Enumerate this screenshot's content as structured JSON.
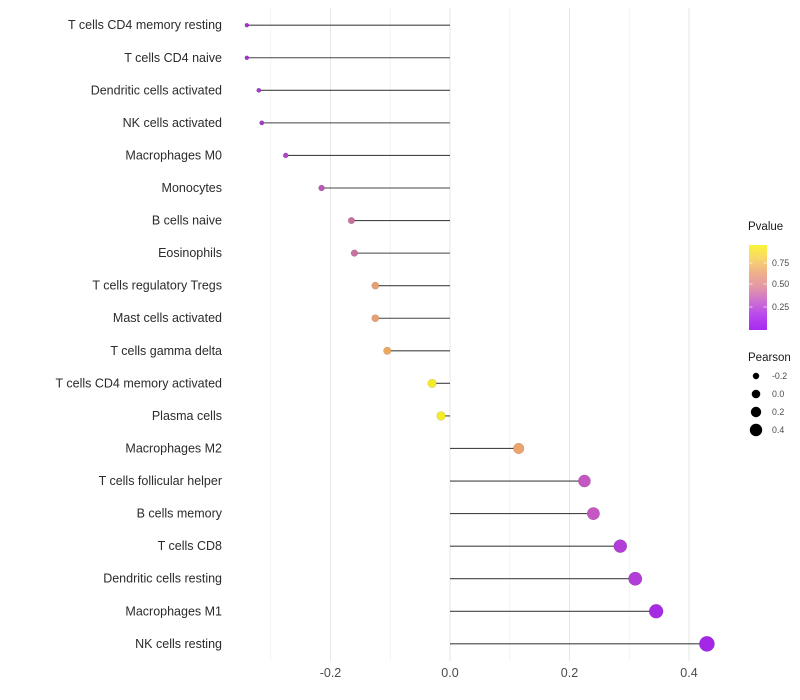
{
  "chart_data": {
    "type": "lollipop",
    "title": "",
    "xlabel": "",
    "ylabel": "",
    "x_tick_labels": [
      "-0.2",
      "0.0",
      "0.2",
      "0.4"
    ],
    "x_tick_values": [
      -0.2,
      0.0,
      0.2,
      0.4
    ],
    "x_minor_gridlines": [
      -0.3,
      -0.1,
      0.1,
      0.3
    ],
    "xlim": [
      -0.38,
      0.47
    ],
    "grid": "vertical-only",
    "size_encodes": "Pearson",
    "color_encodes": "Pvalue",
    "rows": [
      {
        "label": "T cells CD4 memory resting",
        "pearson": -0.34,
        "color": "#A233C9"
      },
      {
        "label": "T cells CD4 naive",
        "pearson": -0.34,
        "color": "#A233C9"
      },
      {
        "label": "Dendritic cells activated",
        "pearson": -0.32,
        "color": "#A43BCB"
      },
      {
        "label": "NK cells activated",
        "pearson": -0.315,
        "color": "#A43BCB"
      },
      {
        "label": "Macrophages M0",
        "pearson": -0.275,
        "color": "#AE46C8"
      },
      {
        "label": "Monocytes",
        "pearson": -0.215,
        "color": "#BC55B9"
      },
      {
        "label": "B cells naive",
        "pearson": -0.165,
        "color": "#C9719D"
      },
      {
        "label": "Eosinophils",
        "pearson": -0.16,
        "color": "#C9719D"
      },
      {
        "label": "T cells regulatory  Tregs",
        "pearson": -0.125,
        "color": "#E7A073"
      },
      {
        "label": "Mast cells activated",
        "pearson": -0.125,
        "color": "#E7A073"
      },
      {
        "label": "T cells gamma delta",
        "pearson": -0.105,
        "color": "#ECA85E"
      },
      {
        "label": "T cells CD4 memory activated",
        "pearson": -0.03,
        "color": "#F4EC28"
      },
      {
        "label": "Plasma cells",
        "pearson": -0.015,
        "color": "#F4EC28"
      },
      {
        "label": "Macrophages M2",
        "pearson": 0.115,
        "color": "#ECA46F"
      },
      {
        "label": "T cells follicular helper",
        "pearson": 0.225,
        "color": "#C557C4"
      },
      {
        "label": "B cells memory",
        "pearson": 0.24,
        "color": "#C557C4"
      },
      {
        "label": "T cells CD8",
        "pearson": 0.285,
        "color": "#B23DD8"
      },
      {
        "label": "Dendritic cells resting",
        "pearson": 0.31,
        "color": "#B23DD8"
      },
      {
        "label": "Macrophages M1",
        "pearson": 0.345,
        "color": "#A62BE3"
      },
      {
        "label": "NK cells resting",
        "pearson": 0.43,
        "color": "#A427E8"
      }
    ],
    "legend": {
      "pvalue": {
        "title": "Pvalue",
        "tick_labels": [
          "0.75",
          "0.50",
          "0.25"
        ],
        "gradient_top_to_bottom": [
          "#FBF438",
          "#F7D56E",
          "#EFAF8B",
          "#E296A8",
          "#CD6FD2",
          "#B846EE",
          "#A82BF0"
        ]
      },
      "pearson": {
        "title": "Pearson",
        "entries": [
          {
            "label": "-0.2",
            "r": 3.2
          },
          {
            "label": "0.0",
            "r": 4.3
          },
          {
            "label": "0.2",
            "r": 5.2
          },
          {
            "label": "0.4",
            "r": 6.2
          }
        ],
        "dot_color": "#000000"
      }
    },
    "style": {
      "stick_color": "#454545",
      "major_grid_color": "#e6e6e6",
      "minor_grid_color": "#f2f2f2",
      "axis_text_color": "#4a4a4a",
      "y_label_color": "#2b2b2b",
      "legend_title_color": "#1a1a1a",
      "background": "#ffffff"
    }
  }
}
